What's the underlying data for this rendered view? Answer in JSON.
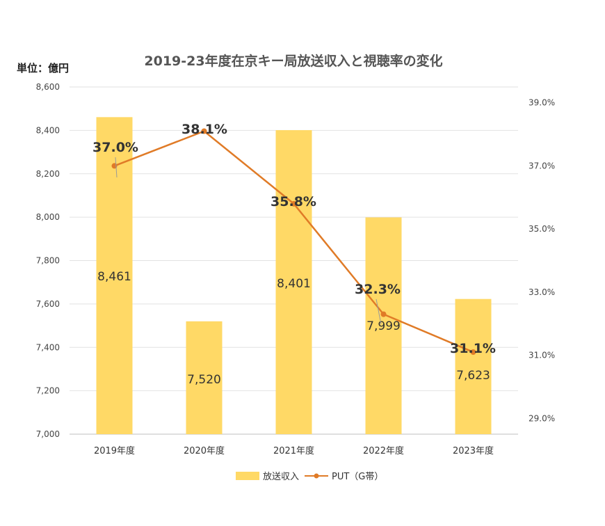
{
  "chart_data": {
    "type": "bar",
    "title": "2019-23年度在京キー局放送収入と視聴率の変化",
    "unit_label": "単位：億円",
    "categories": [
      "2019年度",
      "2020年度",
      "2021年度",
      "2022年度",
      "2023年度"
    ],
    "series": [
      {
        "name": "放送収入",
        "type": "bar",
        "axis": "left",
        "values": [
          8461,
          7520,
          8401,
          7999,
          7623
        ],
        "value_labels": [
          "8,461",
          "7,520",
          "8,401",
          "7,999",
          "7,623"
        ],
        "color": "#FFD966"
      },
      {
        "name": "PUT（G帯）",
        "type": "line",
        "axis": "right",
        "values": [
          37.0,
          38.1,
          35.8,
          32.3,
          31.1
        ],
        "value_labels": [
          "37.0%",
          "38.1%",
          "35.8%",
          "32.3%",
          "31.1%"
        ],
        "color": "#E07B27"
      }
    ],
    "y_left": {
      "min": 7000,
      "max": 8600,
      "ticks": [
        7000,
        7200,
        7400,
        7600,
        7800,
        8000,
        8200,
        8400,
        8600
      ],
      "tick_labels": [
        "7,000",
        "7,200",
        "7,400",
        "7,600",
        "7,800",
        "8,000",
        "8,200",
        "8,400",
        "8,600"
      ]
    },
    "y_right": {
      "min": 28.5,
      "max": 39.5,
      "ticks": [
        29.0,
        31.0,
        33.0,
        35.0,
        37.0,
        39.0
      ],
      "tick_labels": [
        "29.0%",
        "31.0%",
        "33.0%",
        "35.0%",
        "37.0%",
        "39.0%"
      ]
    },
    "grid": true,
    "legend_position": "bottom"
  }
}
